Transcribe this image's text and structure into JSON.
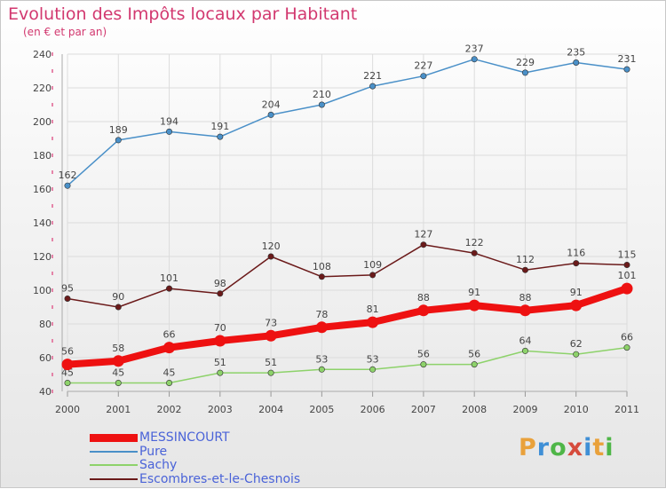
{
  "title": "Evolution des Impôts locaux par Habitant",
  "subtitle": "(en € et par an)",
  "logo": {
    "letters": [
      "P",
      "r",
      "o",
      "x",
      "i",
      "t",
      "i"
    ],
    "colors": [
      "#e9a13b",
      "#3f8fd6",
      "#4fb648",
      "#d64b3c",
      "#3f8fd6",
      "#e9a13b",
      "#4fb648"
    ]
  },
  "colors": {
    "title": "#d2386f",
    "axis_text": "#444444",
    "grid": "#dcdcdc",
    "tick_marks": "#e06090"
  },
  "chart_data": {
    "type": "line",
    "title": "Evolution des Impôts locaux par Habitant",
    "subtitle": "(en € et par an)",
    "x": [
      "2000",
      "2001",
      "2002",
      "2003",
      "2004",
      "2005",
      "2006",
      "2007",
      "2008",
      "2009",
      "2010",
      "2011"
    ],
    "ylim": [
      40,
      240
    ],
    "yticks": [
      40,
      60,
      80,
      100,
      120,
      140,
      160,
      180,
      200,
      220,
      240
    ],
    "grid": true,
    "legend_position": "bottom-left",
    "series": [
      {
        "name": "MESSINCOURT",
        "color": "#ee1111",
        "values": [
          56,
          58,
          66,
          70,
          73,
          78,
          81,
          88,
          91,
          88,
          91,
          101
        ]
      },
      {
        "name": "Pure",
        "color": "#4a90c8",
        "values": [
          162,
          189,
          194,
          191,
          204,
          210,
          221,
          227,
          237,
          229,
          235,
          231
        ]
      },
      {
        "name": "Sachy",
        "color": "#8dd26a",
        "values": [
          45,
          45,
          45,
          51,
          51,
          53,
          53,
          56,
          56,
          64,
          62,
          66
        ]
      },
      {
        "name": "Escombres-et-le-Chesnois",
        "color": "#6b1a1a",
        "values": [
          95,
          90,
          101,
          98,
          120,
          108,
          109,
          127,
          122,
          112,
          116,
          115
        ]
      }
    ]
  }
}
